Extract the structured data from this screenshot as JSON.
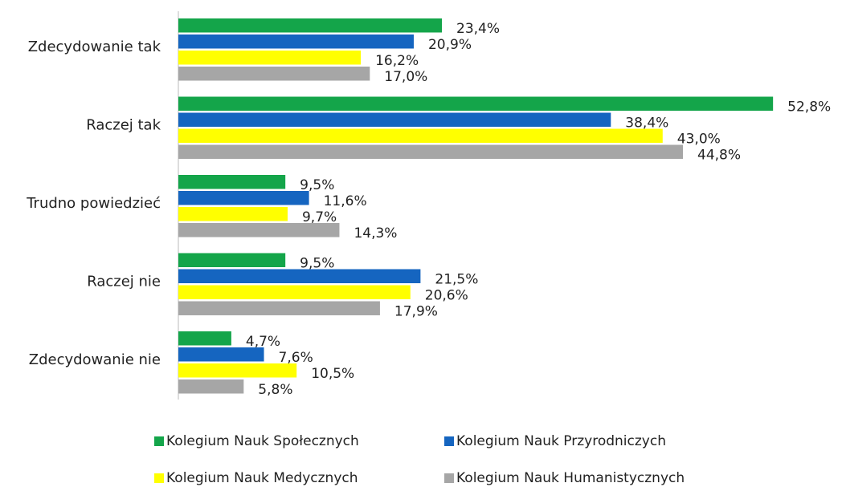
{
  "chart_data": {
    "type": "hbar",
    "categories": [
      "Zdecydowanie tak",
      "Raczej tak",
      "Trudno powiedzieć",
      "Raczej nie",
      "Zdecydowanie nie"
    ],
    "series": [
      {
        "name": "Kolegium Nauk Społecznych",
        "color": "#14a54a",
        "values": [
          23.4,
          52.8,
          9.5,
          9.5,
          4.7
        ],
        "value_labels": [
          "23,4%",
          "52,8%",
          "9,5%",
          "9,5%",
          "4,7%"
        ]
      },
      {
        "name": "Kolegium Nauk Przyrodniczych",
        "color": "#1565c0",
        "values": [
          20.9,
          38.4,
          11.6,
          21.5,
          7.6
        ],
        "value_labels": [
          "20,9%",
          "38,4%",
          "11,6%",
          "21,5%",
          "7,6%"
        ]
      },
      {
        "name": "Kolegium Nauk Medycznych",
        "color": "#ffff00",
        "values": [
          16.2,
          43.0,
          9.7,
          20.6,
          10.5
        ],
        "value_labels": [
          "16,2%",
          "43,0%",
          "9,7%",
          "20,6%",
          "10,5%"
        ]
      },
      {
        "name": "Kolegium Nauk Humanistycznych",
        "color": "#a6a6a6",
        "values": [
          17.0,
          44.8,
          14.3,
          17.9,
          5.8
        ],
        "value_labels": [
          "17,0%",
          "44,8%",
          "14,3%",
          "17,9%",
          "5,8%"
        ]
      }
    ],
    "xlim": [
      0,
      55
    ]
  }
}
